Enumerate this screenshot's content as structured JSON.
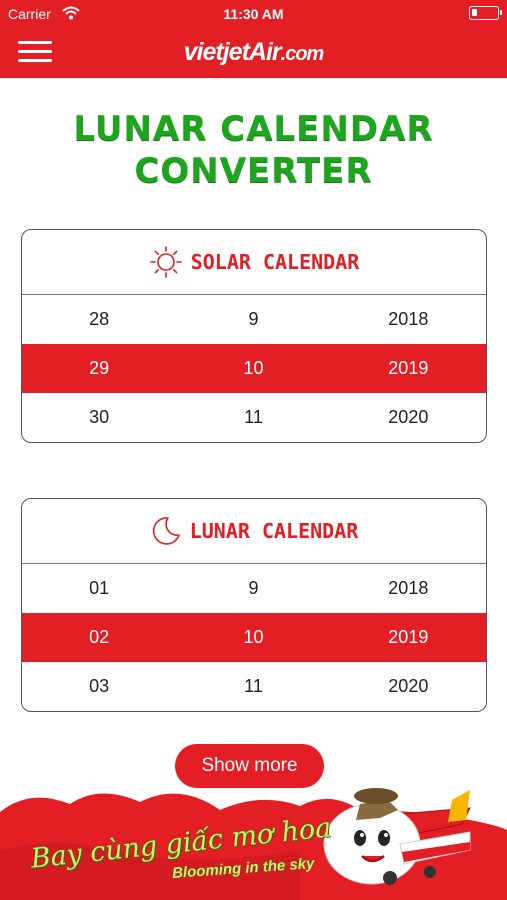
{
  "status_bar": {
    "carrier": "Carrier",
    "time": "11:30 AM"
  },
  "nav": {
    "logo_main": "vietjetAir",
    "logo_suffix": ".com"
  },
  "page": {
    "title_line1": "LUNAR CALENDAR",
    "title_line2": "CONVERTER"
  },
  "solar": {
    "title": "SOLAR CALENDAR",
    "icon": "sun-icon",
    "rows": [
      {
        "day": "28",
        "month": "9",
        "year": "2018"
      },
      {
        "day": "29",
        "month": "10",
        "year": "2019"
      },
      {
        "day": "30",
        "month": "11",
        "year": "2020"
      }
    ]
  },
  "lunar": {
    "title": "LUNAR CALENDAR",
    "icon": "moon-icon",
    "rows": [
      {
        "day": "01",
        "month": "9",
        "year": "2018"
      },
      {
        "day": "02",
        "month": "10",
        "year": "2019"
      },
      {
        "day": "03",
        "month": "11",
        "year": "2020"
      }
    ]
  },
  "show_more_label": "Show more",
  "footer": {
    "slogan_vn": "Bay cùng giấc mơ hoa",
    "slogan_en": "Blooming in the sky"
  },
  "colors": {
    "brand_red": "#e31e24",
    "title_green": "#1ea51e",
    "slogan_green": "#c8f26a"
  }
}
